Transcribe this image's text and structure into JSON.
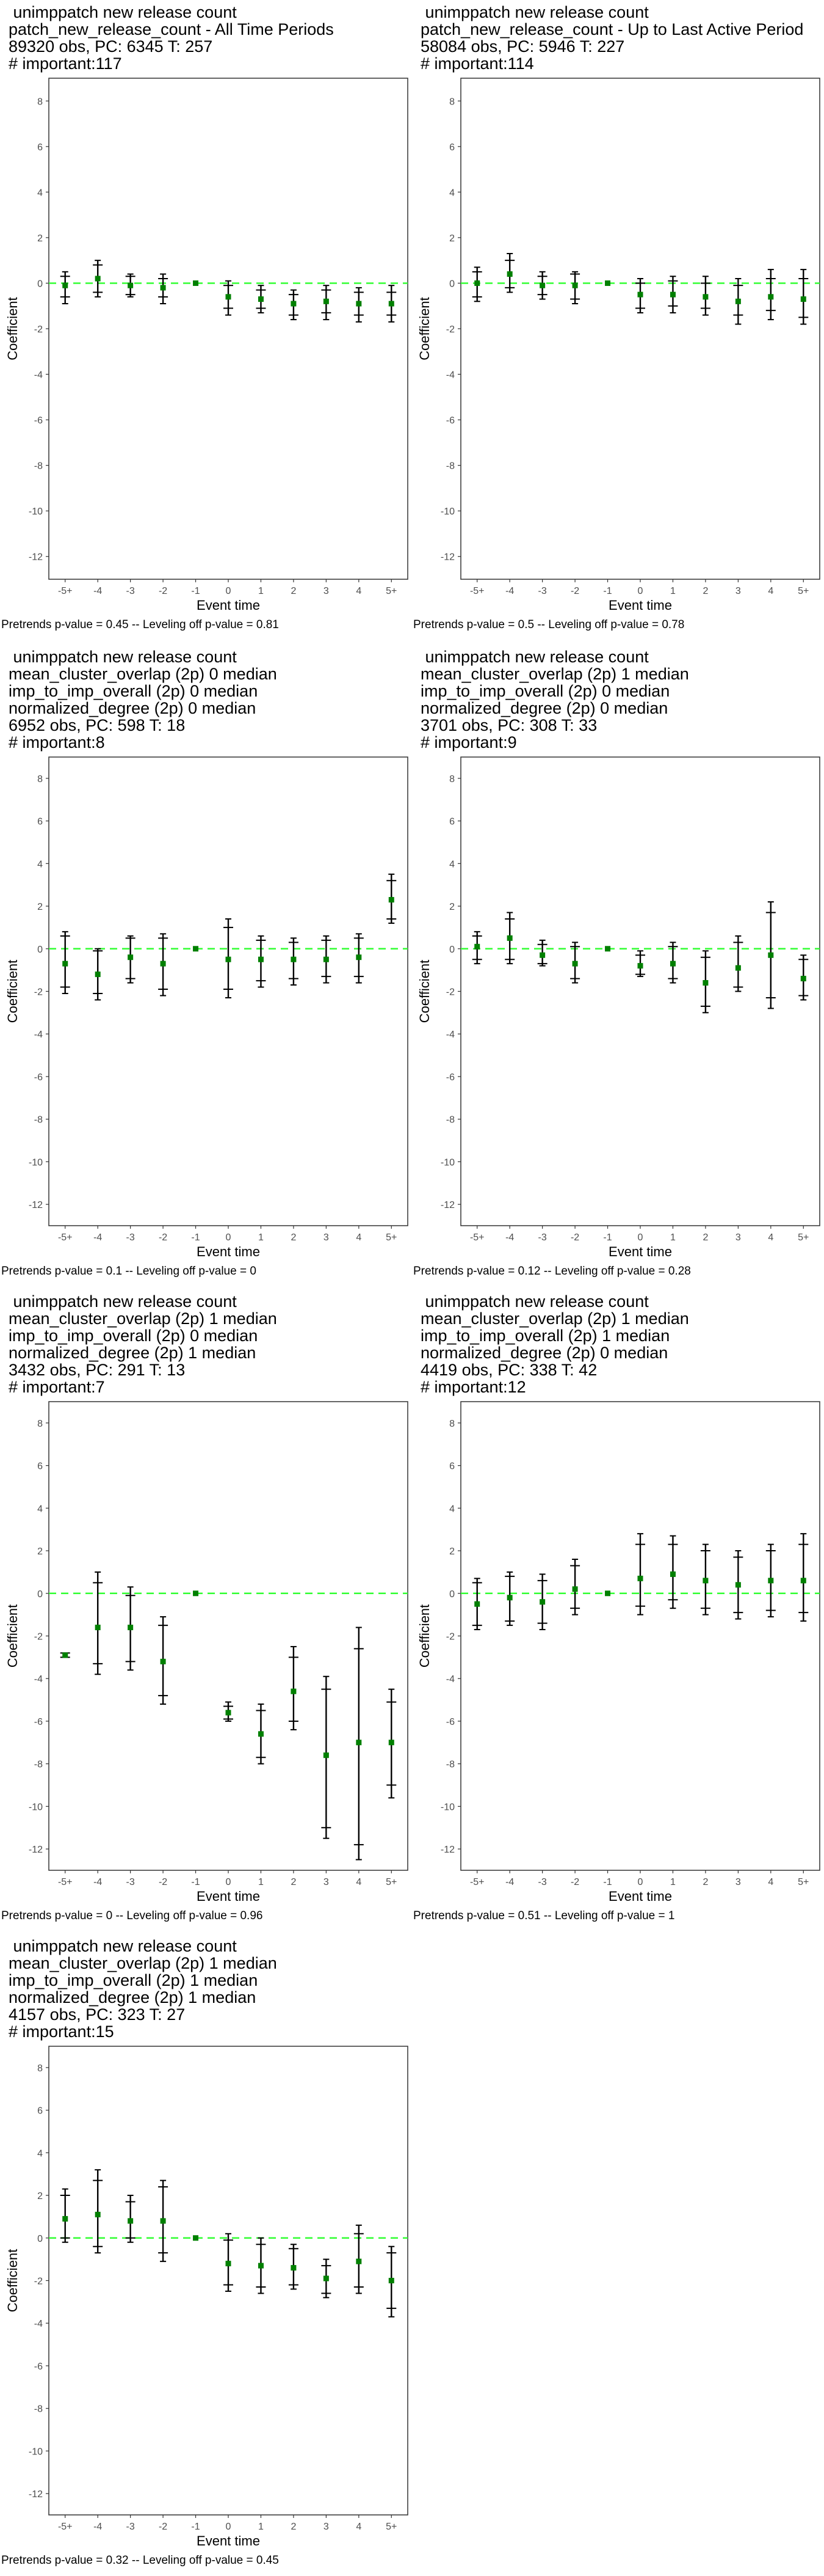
{
  "common": {
    "x_labels": [
      "-5+",
      "-4",
      "-3",
      "-2",
      "-1",
      "0",
      "1",
      "2",
      "3",
      "4",
      "5+"
    ],
    "y_ticks": [
      8,
      6,
      4,
      2,
      0,
      -2,
      -4,
      -6,
      -8,
      -10,
      -12
    ],
    "ylim": [
      -13,
      9
    ],
    "xlabel": "Event time",
    "ylabel": "Coefficient",
    "zero_line_color": "#33ff33",
    "point_color": "#008000"
  },
  "chart_data": [
    {
      "type": "scatter",
      "title_lines": [
        " unimppatch new release count",
        "patch_new_release_count - All Time Periods",
        "89320 obs, PC: 6345 T: 257",
        "# important:117"
      ],
      "note": "Pretrends p-value = 0.45 -- Leveling off p-value = 0.81",
      "estimates": [
        -0.1,
        0.2,
        -0.1,
        -0.2,
        0,
        -0.6,
        -0.7,
        -0.9,
        -0.8,
        -0.9,
        -0.9
      ],
      "ci95": [
        [
          -0.9,
          0.5
        ],
        [
          -0.6,
          1.0
        ],
        [
          -0.6,
          0.4
        ],
        [
          -0.9,
          0.4
        ],
        null,
        [
          -1.4,
          0.1
        ],
        [
          -1.3,
          -0.1
        ],
        [
          -1.6,
          -0.3
        ],
        [
          -1.6,
          -0.1
        ],
        [
          -1.7,
          -0.2
        ],
        [
          -1.7,
          -0.1
        ]
      ],
      "ci90": [
        [
          -0.6,
          0.3
        ],
        [
          -0.4,
          0.8
        ],
        [
          -0.5,
          0.3
        ],
        [
          -0.6,
          0.2
        ],
        null,
        [
          -1.1,
          -0.1
        ],
        [
          -1.1,
          -0.3
        ],
        [
          -1.4,
          -0.5
        ],
        [
          -1.3,
          -0.3
        ],
        [
          -1.4,
          -0.4
        ],
        [
          -1.4,
          -0.4
        ]
      ]
    },
    {
      "type": "scatter",
      "title_lines": [
        " unimppatch new release count",
        "patch_new_release_count - Up to Last Active Period",
        "58084 obs, PC: 5946 T: 227",
        "# important:114"
      ],
      "note": "Pretrends p-value = 0.5 -- Leveling off p-value = 0.78",
      "estimates": [
        0.0,
        0.4,
        -0.1,
        -0.1,
        0,
        -0.5,
        -0.5,
        -0.6,
        -0.8,
        -0.6,
        -0.7
      ],
      "ci95": [
        [
          -0.8,
          0.7
        ],
        [
          -0.4,
          1.3
        ],
        [
          -0.7,
          0.5
        ],
        [
          -0.9,
          0.5
        ],
        null,
        [
          -1.3,
          0.2
        ],
        [
          -1.3,
          0.3
        ],
        [
          -1.4,
          0.3
        ],
        [
          -1.8,
          0.2
        ],
        [
          -1.6,
          0.6
        ],
        [
          -1.8,
          0.6
        ]
      ],
      "ci90": [
        [
          -0.6,
          0.5
        ],
        [
          -0.2,
          1.0
        ],
        [
          -0.5,
          0.3
        ],
        [
          -0.7,
          0.4
        ],
        null,
        [
          -1.1,
          0.0
        ],
        [
          -1.0,
          0.1
        ],
        [
          -1.1,
          0.0
        ],
        [
          -1.4,
          -0.1
        ],
        [
          -1.2,
          0.2
        ],
        [
          -1.5,
          0.2
        ]
      ]
    },
    {
      "type": "scatter",
      "title_lines": [
        " unimppatch new release count",
        "mean_cluster_overlap (2p) 0 median",
        "imp_to_imp_overall (2p) 0 median",
        "normalized_degree (2p) 0 median",
        "6952 obs, PC: 598 T: 18",
        "# important:8"
      ],
      "note": "Pretrends p-value = 0.1 -- Leveling off p-value = 0",
      "estimates": [
        -0.7,
        -1.2,
        -0.4,
        -0.7,
        0,
        -0.5,
        -0.5,
        -0.5,
        -0.5,
        -0.4,
        2.3
      ],
      "ci95": [
        [
          -2.1,
          0.8
        ],
        [
          -2.4,
          0.0
        ],
        [
          -1.6,
          0.6
        ],
        [
          -2.2,
          0.7
        ],
        null,
        [
          -2.3,
          1.4
        ],
        [
          -1.8,
          0.6
        ],
        [
          -1.7,
          0.5
        ],
        [
          -1.6,
          0.6
        ],
        [
          -1.6,
          0.7
        ],
        [
          1.2,
          3.5
        ]
      ],
      "ci90": [
        [
          -1.8,
          0.6
        ],
        [
          -2.1,
          -0.1
        ],
        [
          -1.4,
          0.5
        ],
        [
          -1.9,
          0.5
        ],
        null,
        [
          -1.9,
          1.0
        ],
        [
          -1.5,
          0.4
        ],
        [
          -1.4,
          0.3
        ],
        [
          -1.3,
          0.4
        ],
        [
          -1.3,
          0.5
        ],
        [
          1.4,
          3.2
        ]
      ]
    },
    {
      "type": "scatter",
      "title_lines": [
        " unimppatch new release count",
        "mean_cluster_overlap (2p) 1 median",
        "imp_to_imp_overall (2p) 0 median",
        "normalized_degree (2p) 0 median",
        "3701 obs, PC: 308 T: 33",
        "# important:9"
      ],
      "note": "Pretrends p-value = 0.12 -- Leveling off p-value = 0.28",
      "estimates": [
        0.1,
        0.5,
        -0.3,
        -0.7,
        0,
        -0.8,
        -0.7,
        -1.6,
        -0.9,
        -0.3,
        -1.4
      ],
      "ci95": [
        [
          -0.7,
          0.8
        ],
        [
          -0.7,
          1.7
        ],
        [
          -0.8,
          0.4
        ],
        [
          -1.6,
          0.3
        ],
        null,
        [
          -1.3,
          -0.1
        ],
        [
          -1.6,
          0.3
        ],
        [
          -3.0,
          -0.1
        ],
        [
          -2.0,
          0.6
        ],
        [
          -2.8,
          2.2
        ],
        [
          -2.4,
          -0.3
        ]
      ],
      "ci90": [
        [
          -0.5,
          0.6
        ],
        [
          -0.5,
          1.4
        ],
        [
          -0.7,
          0.2
        ],
        [
          -1.4,
          0.1
        ],
        null,
        [
          -1.2,
          -0.3
        ],
        [
          -1.4,
          0.1
        ],
        [
          -2.7,
          -0.4
        ],
        [
          -1.8,
          0.3
        ],
        [
          -2.3,
          1.7
        ],
        [
          -2.2,
          -0.5
        ]
      ]
    },
    {
      "type": "scatter",
      "title_lines": [
        " unimppatch new release count",
        "mean_cluster_overlap (2p) 1 median",
        "imp_to_imp_overall (2p) 0 median",
        "normalized_degree (2p) 1 median",
        "3432 obs, PC: 291 T: 13",
        "# important:7"
      ],
      "note": "Pretrends p-value = 0 -- Leveling off p-value = 0.96",
      "estimates": [
        -2.9,
        -1.6,
        -1.6,
        -3.2,
        0,
        -5.6,
        -6.6,
        -4.6,
        -7.6,
        -7.0,
        -7.0
      ],
      "ci95": [
        [
          -3.0,
          -2.8
        ],
        [
          -3.8,
          1.0
        ],
        [
          -3.6,
          0.3
        ],
        [
          -5.2,
          -1.1
        ],
        null,
        [
          -6.0,
          -5.1
        ],
        [
          -8.0,
          -5.2
        ],
        [
          -6.4,
          -2.5
        ],
        [
          -11.5,
          -3.9
        ],
        [
          -12.5,
          -1.6
        ],
        [
          -9.6,
          -4.5
        ]
      ],
      "ci90": [
        [
          -3.0,
          -2.8
        ],
        [
          -3.3,
          0.5
        ],
        [
          -3.2,
          -0.1
        ],
        [
          -4.8,
          -1.5
        ],
        null,
        [
          -5.9,
          -5.3
        ],
        [
          -7.7,
          -5.5
        ],
        [
          -6.0,
          -3.0
        ],
        [
          -11.0,
          -4.5
        ],
        [
          -11.8,
          -2.6
        ],
        [
          -9.0,
          -5.1
        ]
      ]
    },
    {
      "type": "scatter",
      "title_lines": [
        " unimppatch new release count",
        "mean_cluster_overlap (2p) 1 median",
        "imp_to_imp_overall (2p) 1 median",
        "normalized_degree (2p) 0 median",
        "4419 obs, PC: 338 T: 42",
        "# important:12"
      ],
      "note": "Pretrends p-value = 0.51 -- Leveling off p-value = 1",
      "estimates": [
        -0.5,
        -0.2,
        -0.4,
        0.2,
        0,
        0.7,
        0.9,
        0.6,
        0.4,
        0.6,
        0.6
      ],
      "ci95": [
        [
          -1.7,
          0.7
        ],
        [
          -1.5,
          1.0
        ],
        [
          -1.7,
          0.9
        ],
        [
          -1.0,
          1.6
        ],
        null,
        [
          -1.0,
          2.8
        ],
        [
          -0.7,
          2.7
        ],
        [
          -1.0,
          2.3
        ],
        [
          -1.2,
          2.0
        ],
        [
          -1.1,
          2.3
        ],
        [
          -1.3,
          2.8
        ]
      ],
      "ci90": [
        [
          -1.5,
          0.5
        ],
        [
          -1.3,
          0.8
        ],
        [
          -1.4,
          0.6
        ],
        [
          -0.7,
          1.3
        ],
        null,
        [
          -0.6,
          2.3
        ],
        [
          -0.3,
          2.3
        ],
        [
          -0.7,
          2.0
        ],
        [
          -0.9,
          1.7
        ],
        [
          -0.8,
          2.0
        ],
        [
          -0.9,
          2.3
        ]
      ]
    },
    {
      "type": "scatter",
      "title_lines": [
        " unimppatch new release count",
        "mean_cluster_overlap (2p) 1 median",
        "imp_to_imp_overall (2p) 1 median",
        "normalized_degree (2p) 1 median",
        "4157 obs, PC: 323 T: 27",
        "# important:15"
      ],
      "note": "Pretrends p-value = 0.32 -- Leveling off p-value = 0.45",
      "estimates": [
        0.9,
        1.1,
        0.8,
        0.8,
        0,
        -1.2,
        -1.3,
        -1.4,
        -1.9,
        -1.1,
        -2.0
      ],
      "ci95": [
        [
          -0.2,
          2.3
        ],
        [
          -0.7,
          3.2
        ],
        [
          -0.2,
          2.0
        ],
        [
          -1.1,
          2.7
        ],
        null,
        [
          -2.5,
          0.2
        ],
        [
          -2.6,
          0.0
        ],
        [
          -2.4,
          -0.3
        ],
        [
          -2.8,
          -1.0
        ],
        [
          -2.6,
          0.6
        ],
        [
          -3.7,
          -0.4
        ]
      ],
      "ci90": [
        [
          0.0,
          2.0
        ],
        [
          -0.4,
          2.7
        ],
        [
          0.0,
          1.7
        ],
        [
          -0.7,
          2.4
        ],
        null,
        [
          -2.2,
          -0.1
        ],
        [
          -2.3,
          -0.3
        ],
        [
          -2.2,
          -0.5
        ],
        [
          -2.6,
          -1.3
        ],
        [
          -2.3,
          0.2
        ],
        [
          -3.3,
          -0.7
        ]
      ]
    }
  ]
}
